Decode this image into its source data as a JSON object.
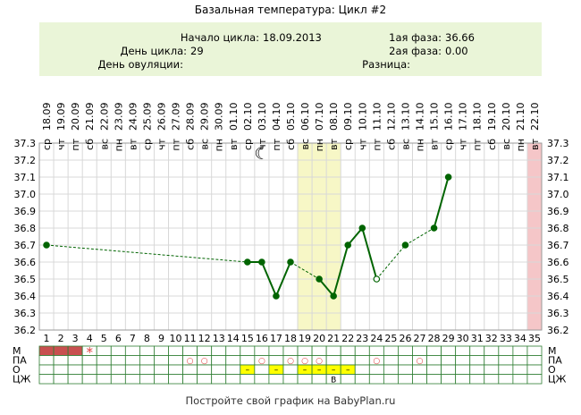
{
  "title": "Базальная температура: Цикл #2",
  "info": {
    "cycle_start_label": "Начало цикла:",
    "cycle_start_value": "18.09.2013",
    "cycle_day_label": "День цикла:",
    "cycle_day_value": "29",
    "ovulation_day_label": "День овуляции:",
    "ovulation_day_value": "",
    "phase1_label": "1ая фаза:",
    "phase1_value": "36.66",
    "phase2_label": "2ая фаза:",
    "phase2_value": "0.00",
    "difference_label": "Разница:",
    "difference_value": ""
  },
  "footer": "Постройте свой график на BabyPlan.ru",
  "colors": {
    "line": "#006400",
    "grid": "#d8d8d8",
    "highlight": "#f7f7c6",
    "today": "#f5c6c8",
    "info_bg": "#eaf5d8",
    "m_cell": "#c85050",
    "o_cell": "#ffff00",
    "pa_marker": "#e04040"
  },
  "chart_data": {
    "type": "line",
    "ylim": [
      36.2,
      37.3
    ],
    "yticks": [
      "37.3",
      "37.2",
      "37.1",
      "37.0",
      "36.9",
      "36.8",
      "36.7",
      "36.6",
      "36.5",
      "36.4",
      "36.3",
      "36.2"
    ],
    "days": [
      "1",
      "2",
      "3",
      "4",
      "5",
      "6",
      "7",
      "8",
      "9",
      "10",
      "11",
      "12",
      "13",
      "14",
      "15",
      "16",
      "17",
      "18",
      "19",
      "20",
      "21",
      "22",
      "23",
      "24",
      "25",
      "26",
      "27",
      "28",
      "29",
      "30",
      "31",
      "32",
      "33",
      "34",
      "35"
    ],
    "dates": [
      "18.09",
      "19.09",
      "20.09",
      "21.09",
      "22.09",
      "23.09",
      "24.09",
      "25.09",
      "26.09",
      "27.09",
      "28.09",
      "29.09",
      "30.09",
      "01.10",
      "02.10",
      "03.10",
      "04.10",
      "05.10",
      "06.10",
      "07.10",
      "08.10",
      "09.10",
      "10.10",
      "11.10",
      "12.10",
      "13.10",
      "14.10",
      "15.10",
      "16.10",
      "17.10",
      "18.10",
      "19.10",
      "20.10",
      "21.10",
      "22.10"
    ],
    "weekdays": [
      "ср",
      "чт",
      "пт",
      "сб",
      "вс",
      "пн",
      "вт",
      "ср",
      "чт",
      "пт",
      "сб",
      "вс",
      "пн",
      "вт",
      "ср",
      "чт",
      "пт",
      "сб",
      "вс",
      "пн",
      "вт",
      "ср",
      "чт",
      "пт",
      "сб",
      "вс",
      "пн",
      "вт",
      "ср",
      "чт",
      "пт",
      "сб",
      "вс",
      "пн",
      "вт"
    ],
    "points": [
      {
        "day": 1,
        "temp": 36.7
      },
      {
        "day": 15,
        "temp": 36.6
      },
      {
        "day": 16,
        "temp": 36.6
      },
      {
        "day": 17,
        "temp": 36.4
      },
      {
        "day": 18,
        "temp": 36.6
      },
      {
        "day": 20,
        "temp": 36.5
      },
      {
        "day": 21,
        "temp": 36.4
      },
      {
        "day": 22,
        "temp": 36.7
      },
      {
        "day": 23,
        "temp": 36.8
      },
      {
        "day": 24,
        "temp": 36.5,
        "hollow": true
      },
      {
        "day": 26,
        "temp": 36.7
      },
      {
        "day": 28,
        "temp": 36.8
      },
      {
        "day": 29,
        "temp": 37.1
      }
    ],
    "segments": [
      {
        "from": 1,
        "to": 15,
        "dashed": true
      },
      {
        "from": 15,
        "to": 16
      },
      {
        "from": 16,
        "to": 17
      },
      {
        "from": 17,
        "to": 18
      },
      {
        "from": 18,
        "to": 20,
        "dashed": true
      },
      {
        "from": 20,
        "to": 21
      },
      {
        "from": 21,
        "to": 22
      },
      {
        "from": 22,
        "to": 23
      },
      {
        "from": 23,
        "to": 24
      },
      {
        "from": 24,
        "to": 26,
        "dashed": true
      },
      {
        "from": 26,
        "to": 28,
        "dashed": true
      },
      {
        "from": 28,
        "to": 29
      }
    ],
    "highlight_days": [
      19,
      21
    ],
    "today_day": 35,
    "moon_day": 16,
    "moon_symbol": "☾",
    "rows": {
      "labels": [
        "М",
        "ПА",
        "О",
        "ЦЖ"
      ],
      "m_filled_days": [
        1,
        2,
        3
      ],
      "m_star_day": 4,
      "m_star_symbol": "*",
      "pa_days": [
        11,
        12,
        16,
        18,
        19,
        20,
        24,
        27
      ],
      "pa_symbol": "○",
      "o_days": [
        15,
        17,
        19,
        20,
        21,
        22
      ],
      "o_symbol": "–",
      "o_mark_day": 21,
      "o_mark_text": "В"
    }
  }
}
